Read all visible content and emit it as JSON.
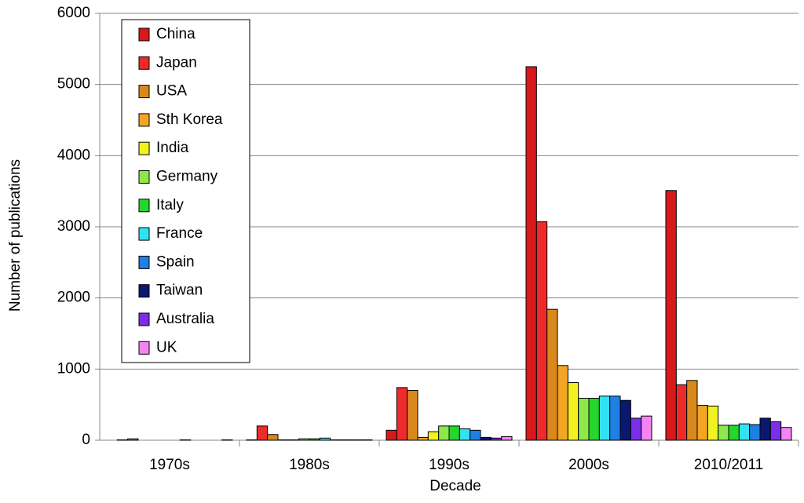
{
  "chart_data": {
    "type": "bar",
    "x_label": "Decade",
    "y_label": "Number of publications",
    "categories": [
      "1970s",
      "1980s",
      "1990s",
      "2000s",
      "2010/2011"
    ],
    "ylim": [
      0,
      6000
    ],
    "yticks": [
      0,
      1000,
      2000,
      3000,
      4000,
      5000,
      6000
    ],
    "grid": true,
    "legend": "upper left",
    "series": [
      {
        "name": "China",
        "color": "#d7191c",
        "values": [
          0,
          5,
          140,
          5250,
          3510
        ]
      },
      {
        "name": "Japan",
        "color": "#ee2b2b",
        "values": [
          5,
          200,
          740,
          3070,
          780
        ]
      },
      {
        "name": "USA",
        "color": "#d9891c",
        "values": [
          20,
          80,
          700,
          1840,
          840
        ]
      },
      {
        "name": "Sth Korea",
        "color": "#f3a526",
        "values": [
          0,
          5,
          40,
          1050,
          490
        ]
      },
      {
        "name": "India",
        "color": "#f2f222",
        "values": [
          0,
          5,
          120,
          810,
          480
        ]
      },
      {
        "name": "Germany",
        "color": "#8fe84b",
        "values": [
          0,
          20,
          200,
          590,
          210
        ]
      },
      {
        "name": "Italy",
        "color": "#25d62c",
        "values": [
          0,
          20,
          200,
          590,
          210
        ]
      },
      {
        "name": "France",
        "color": "#33e2f2",
        "values": [
          5,
          30,
          160,
          620,
          230
        ]
      },
      {
        "name": "Spain",
        "color": "#1f7fe3",
        "values": [
          0,
          5,
          140,
          620,
          220
        ]
      },
      {
        "name": "Taiwan",
        "color": "#0a1870",
        "values": [
          0,
          5,
          40,
          560,
          310
        ]
      },
      {
        "name": "Australia",
        "color": "#7a2ee8",
        "values": [
          0,
          5,
          30,
          310,
          260
        ]
      },
      {
        "name": "UK",
        "color": "#f584f2",
        "values": [
          5,
          5,
          50,
          340,
          180
        ]
      }
    ]
  }
}
